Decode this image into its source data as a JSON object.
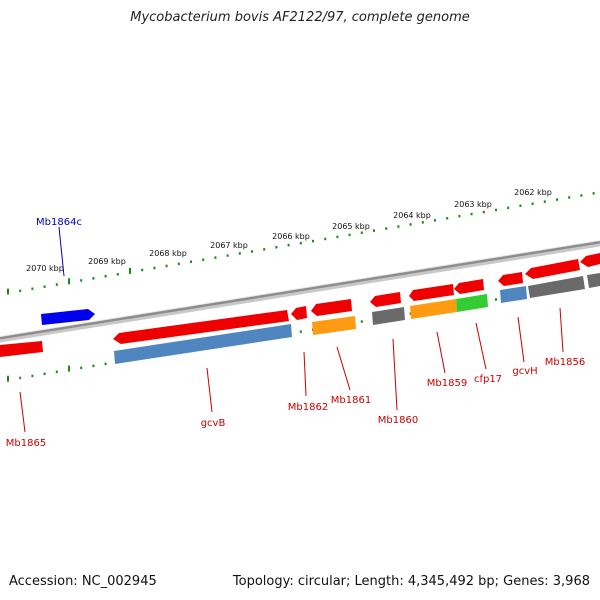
{
  "title": "Mycobacterium bovis AF2122/97, complete genome",
  "footer": {
    "accession": "Accession: NC_002945",
    "summary": "Topology: circular; Length: 4,345,492 bp; Genes: 3,968"
  },
  "colors": {
    "forward_gene": "#ee0000",
    "reverse_gene": "#0000ee",
    "steelblue_gene": "#4f86bf",
    "orange_gene": "#ff9b10",
    "green_gene": "#33cc33",
    "gray_gene": "#6a6a6a",
    "tick": "#1a8a1a",
    "backbone": "#8c8c8c",
    "forward_label": "#cc0000",
    "reverse_label": "#0000bb"
  },
  "scale_labels": [
    "2070 kbp",
    "2069 kbp",
    "2068 kbp",
    "2067 kbp",
    "2066 kbp",
    "2065 kbp",
    "2064 kbp",
    "2063 kbp",
    "2062 kbp"
  ],
  "gene_labels": [
    {
      "name": "Mb1864c",
      "strand": "reverse"
    },
    {
      "name": "Mb1865",
      "strand": "forward"
    },
    {
      "name": "gcvB",
      "strand": "forward"
    },
    {
      "name": "Mb1862",
      "strand": "forward"
    },
    {
      "name": "Mb1861",
      "strand": "forward"
    },
    {
      "name": "Mb1860",
      "strand": "forward"
    },
    {
      "name": "Mb1859",
      "strand": "forward"
    },
    {
      "name": "cfp17",
      "strand": "forward"
    },
    {
      "name": "gcvH",
      "strand": "forward"
    },
    {
      "name": "Mb1856",
      "strand": "forward"
    }
  ]
}
